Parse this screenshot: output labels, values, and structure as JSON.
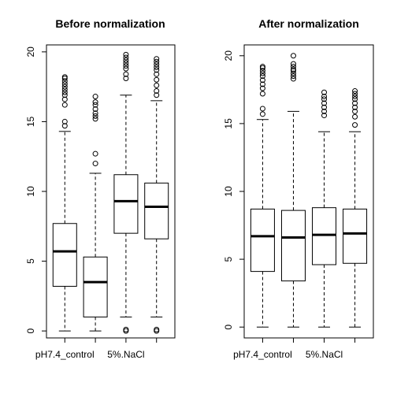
{
  "chart_data": [
    {
      "type": "boxplot",
      "title": "Before normalization",
      "xlabel": "",
      "ylabel": "",
      "ylim": [
        -0.5,
        20.5
      ],
      "yticks": [
        0,
        5,
        10,
        15,
        20
      ],
      "tick_labels": [
        "pH7.4_control",
        "",
        "5%.NaCl",
        ""
      ],
      "boxes": [
        {
          "min": 0,
          "q1": 3.2,
          "median": 5.7,
          "q3": 7.7,
          "max": 14.3,
          "outliers": [
            14.7,
            15.0,
            16.2,
            16.6,
            16.9,
            17.1,
            17.3,
            17.5,
            17.7,
            17.9,
            18.1,
            18.2
          ]
        },
        {
          "min": 0,
          "q1": 1.0,
          "median": 3.5,
          "q3": 5.3,
          "max": 11.3,
          "outliers": [
            12.0,
            12.7,
            15.2,
            15.4,
            15.6,
            15.9,
            16.2,
            16.4,
            16.8
          ]
        },
        {
          "min": 1.0,
          "q1": 7.0,
          "median": 9.3,
          "q3": 11.2,
          "max": 16.9,
          "outliers": [
            0.0,
            0.1,
            18.1,
            18.4,
            18.8,
            19.0,
            19.2,
            19.4,
            19.6,
            19.8
          ]
        },
        {
          "min": 1.0,
          "q1": 6.6,
          "median": 8.9,
          "q3": 10.6,
          "max": 16.5,
          "outliers": [
            0.0,
            0.1,
            16.9,
            17.2,
            17.6,
            18.0,
            18.4,
            18.7,
            18.9,
            19.1,
            19.3,
            19.5
          ]
        }
      ]
    },
    {
      "type": "boxplot",
      "title": "After normalization",
      "xlabel": "",
      "ylabel": "",
      "ylim": [
        -0.8,
        20.8
      ],
      "yticks": [
        0,
        5,
        10,
        15,
        20
      ],
      "tick_labels": [
        "pH7.4_control",
        "",
        "5%.NaCl",
        ""
      ],
      "boxes": [
        {
          "min": 0,
          "q1": 4.1,
          "median": 6.7,
          "q3": 8.7,
          "max": 15.3,
          "outliers": [
            15.7,
            16.1,
            17.2,
            17.6,
            17.9,
            18.2,
            18.5,
            18.7,
            18.9,
            19.1,
            19.2
          ]
        },
        {
          "min": 0,
          "q1": 3.4,
          "median": 6.6,
          "q3": 8.6,
          "max": 15.9,
          "outliers": [
            18.3,
            18.5,
            18.7,
            18.9,
            19.0,
            19.2,
            19.4,
            20.0
          ]
        },
        {
          "min": 0,
          "q1": 4.6,
          "median": 6.8,
          "q3": 8.8,
          "max": 14.4,
          "outliers": [
            15.6,
            15.9,
            16.2,
            16.5,
            16.8,
            17.0,
            17.3
          ]
        },
        {
          "min": 0,
          "q1": 4.7,
          "median": 6.9,
          "q3": 8.7,
          "max": 14.4,
          "outliers": [
            14.9,
            15.5,
            15.9,
            16.2,
            16.5,
            16.8,
            17.0,
            17.2,
            17.4
          ]
        }
      ]
    }
  ]
}
